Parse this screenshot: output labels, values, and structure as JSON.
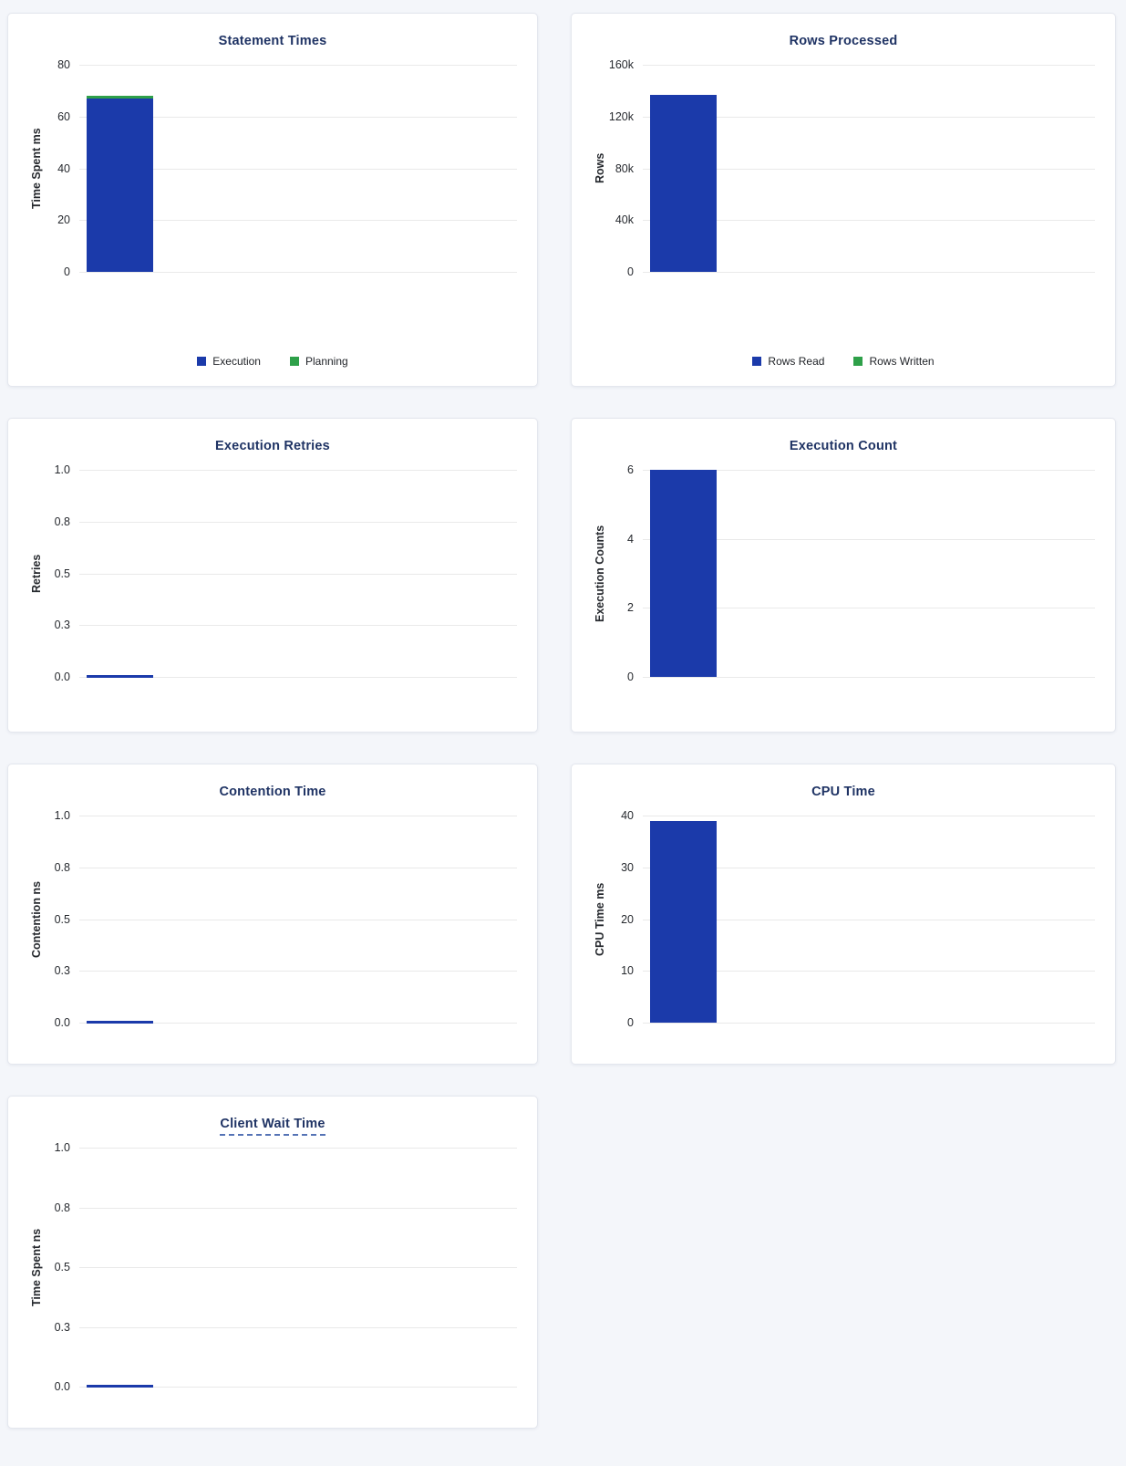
{
  "page": {
    "background_color": "#f4f6fa",
    "card_border_color": "#e4e7ee",
    "title_color": "#1f3364",
    "gridline_color": "#e9e9e9",
    "bar_blue": "#1b3aaa",
    "bar_green": "#2ea049"
  },
  "chart_data": [
    {
      "type": "bar",
      "title": "Statement Times",
      "ylabel": "Time Spent ms",
      "categories": [
        ""
      ],
      "series": [
        {
          "name": "Execution",
          "values": [
            67
          ],
          "color": "#1b3aaa"
        },
        {
          "name": "Planning",
          "values": [
            1
          ],
          "color": "#2ea049"
        }
      ],
      "stacked": true,
      "ylim": [
        0,
        80
      ],
      "ytick_labels": [
        "0",
        "20",
        "40",
        "60",
        "80"
      ],
      "grid": true,
      "legend_position": "bottom",
      "title_underlined": false
    },
    {
      "type": "bar",
      "title": "Rows Processed",
      "ylabel": "Rows",
      "categories": [
        ""
      ],
      "series": [
        {
          "name": "Rows Read",
          "values": [
            137000
          ],
          "color": "#1b3aaa"
        },
        {
          "name": "Rows Written",
          "values": [
            0
          ],
          "color": "#2ea049"
        }
      ],
      "stacked": true,
      "ylim": [
        0,
        160000
      ],
      "ytick_labels": [
        "0",
        "40k",
        "80k",
        "120k",
        "160k"
      ],
      "grid": true,
      "legend_position": "bottom",
      "title_underlined": false
    },
    {
      "type": "bar",
      "title": "Execution Retries",
      "ylabel": "Retries",
      "categories": [
        ""
      ],
      "series": [
        {
          "name": "Execution Retries",
          "values": [
            0
          ],
          "color": "#1b3aaa"
        }
      ],
      "stacked": false,
      "ylim": [
        0,
        1
      ],
      "ytick_labels": [
        "0.0",
        "0.3",
        "0.5",
        "0.8",
        "1.0"
      ],
      "grid": true,
      "legend_position": "none",
      "title_underlined": false
    },
    {
      "type": "bar",
      "title": "Execution Count",
      "ylabel": "Execution Counts",
      "categories": [
        ""
      ],
      "series": [
        {
          "name": "Execution Count",
          "values": [
            6
          ],
          "color": "#1b3aaa"
        }
      ],
      "stacked": false,
      "ylim": [
        0,
        6
      ],
      "ytick_labels": [
        "0",
        "2",
        "4",
        "6"
      ],
      "grid": true,
      "legend_position": "none",
      "title_underlined": false
    },
    {
      "type": "bar",
      "title": "Contention Time",
      "ylabel": "Contention ns",
      "categories": [
        ""
      ],
      "series": [
        {
          "name": "Contention Time",
          "values": [
            0
          ],
          "color": "#1b3aaa"
        }
      ],
      "stacked": false,
      "ylim": [
        0,
        1
      ],
      "ytick_labels": [
        "0.0",
        "0.3",
        "0.5",
        "0.8",
        "1.0"
      ],
      "grid": true,
      "legend_position": "none",
      "title_underlined": false
    },
    {
      "type": "bar",
      "title": "CPU Time",
      "ylabel": "CPU Time ms",
      "categories": [
        ""
      ],
      "series": [
        {
          "name": "CPU Time",
          "values": [
            39
          ],
          "color": "#1b3aaa"
        }
      ],
      "stacked": false,
      "ylim": [
        0,
        40
      ],
      "ytick_labels": [
        "0",
        "10",
        "20",
        "30",
        "40"
      ],
      "grid": true,
      "legend_position": "none",
      "title_underlined": false
    },
    {
      "type": "bar",
      "title": "Client Wait Time",
      "ylabel": "Time Spent ns",
      "categories": [
        ""
      ],
      "series": [
        {
          "name": "Client Wait Time",
          "values": [
            0
          ],
          "color": "#1b3aaa"
        }
      ],
      "stacked": false,
      "ylim": [
        0,
        1
      ],
      "ytick_labels": [
        "0.0",
        "0.3",
        "0.5",
        "0.8",
        "1.0"
      ],
      "grid": true,
      "legend_position": "none",
      "title_underlined": true
    }
  ]
}
